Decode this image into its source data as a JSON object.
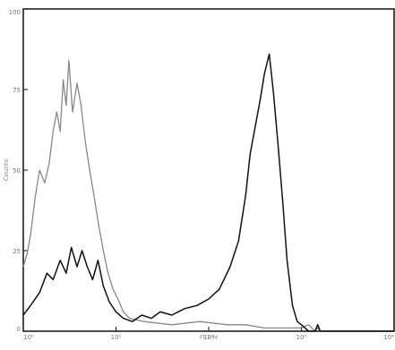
{
  "chart_data": {
    "type": "line",
    "title": "",
    "xlabel": "FL1-H",
    "ylabel": "Counts",
    "x_scale": "log",
    "xlim": [
      1,
      10000
    ],
    "ylim": [
      0,
      100
    ],
    "grid": false,
    "legend": "none",
    "x_ticks": [
      "10⁰",
      "10¹",
      "10²",
      "10³",
      "10⁴"
    ],
    "y_ticks": [
      "0",
      "25",
      "50",
      "75",
      "100"
    ],
    "series": [
      {
        "color": "#888888",
        "x": [
          1,
          1.1,
          1.2,
          1.35,
          1.5,
          1.7,
          1.9,
          2.1,
          2.3,
          2.5,
          2.7,
          2.9,
          3.1,
          3.4,
          3.8,
          4.2,
          4.7,
          5.2,
          5.8,
          6.5,
          7.3,
          8.2,
          9.3,
          10.5,
          12,
          14,
          20,
          40,
          80,
          160,
          250,
          400,
          600,
          1000,
          1200,
          1400,
          1500,
          1600,
          10000
        ],
        "y": [
          20,
          24,
          30,
          42,
          50,
          46,
          52,
          62,
          68,
          62,
          78,
          70,
          84,
          68,
          77,
          70,
          58,
          50,
          42,
          33,
          25,
          18,
          13,
          10,
          6,
          4,
          3,
          2,
          3,
          2,
          2,
          1,
          1,
          1,
          2,
          0,
          1,
          0,
          0
        ]
      },
      {
        "color": "#111111",
        "x": [
          1,
          1.2,
          1.5,
          1.8,
          2.1,
          2.5,
          2.9,
          3.3,
          3.8,
          4.3,
          4.9,
          5.6,
          6.4,
          7.3,
          8.5,
          10,
          12,
          15,
          19,
          24,
          30,
          40,
          55,
          75,
          100,
          130,
          170,
          210,
          250,
          280,
          320,
          360,
          400,
          450,
          500,
          560,
          630,
          700,
          800,
          900,
          1000,
          1200,
          1400,
          1500,
          1600,
          2000,
          10000
        ],
        "y": [
          5,
          8,
          12,
          18,
          16,
          22,
          18,
          26,
          20,
          25,
          20,
          16,
          22,
          14,
          9,
          6,
          4,
          3,
          5,
          4,
          6,
          5,
          7,
          8,
          10,
          13,
          20,
          28,
          42,
          55,
          64,
          72,
          80,
          86,
          74,
          58,
          40,
          22,
          8,
          3,
          2,
          0,
          0,
          2,
          0,
          0,
          0
        ]
      }
    ]
  }
}
